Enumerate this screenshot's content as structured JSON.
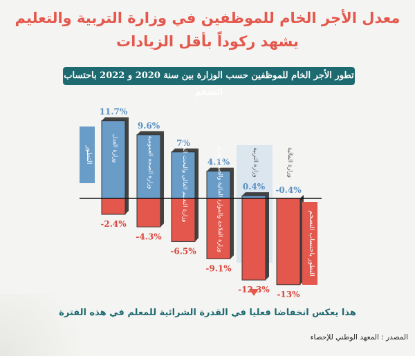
{
  "title_line1": "معدل الأجر الخام للموظفين في وزارة التربية والتعليم",
  "title_line2": "يشهد ركوداً بأقل الزيادات",
  "subtitle": "تطور الأجر الخام للموظفين حسب الوزارة بين سنة 2020 و 2022 باحتساب التضخم",
  "footnote": "هذا يعكس انخفاضا فعليا في القدرة الشرائية للمعلم في هذه الفترة",
  "source": "المصدر : المعهد الوطني للإحصاء",
  "chart_data": {
    "type": "bar",
    "categories": [
      "وزارة العدل",
      "وزارة الصحة العمومية",
      "وزارة التعليم العالي والبحث العلمي",
      "وزارة الفلاحة والموارد المائية والصيد البحري",
      "وزارة التربية",
      "وزارة المالية"
    ],
    "series": [
      {
        "name": "التطور",
        "values": [
          11.7,
          9.6,
          7,
          4.1,
          0.4,
          -0.4
        ],
        "labels": [
          "11.7%",
          "9.6%",
          "7%",
          "4.1%",
          "0.4%",
          "-0.4%"
        ],
        "color": "#6a9cc8"
      },
      {
        "name": "التطور باحتساب التضخم",
        "values": [
          -2.4,
          -4.3,
          -6.5,
          -9.1,
          -12.3,
          -13
        ],
        "labels": [
          "-2.4%",
          "-4.3%",
          "-6.5%",
          "-9.1%",
          "-12.3%",
          "-13%"
        ],
        "color": "#e4574c"
      }
    ],
    "highlight_category": "وزارة التربية",
    "legend_left": "التطور",
    "legend_right": "التطور باحتساب التضخم",
    "colors": {
      "positive": "#6a9cc8",
      "negative": "#e4574c",
      "accent": "#1d6a70",
      "highlight": "#d5e2ed"
    }
  }
}
